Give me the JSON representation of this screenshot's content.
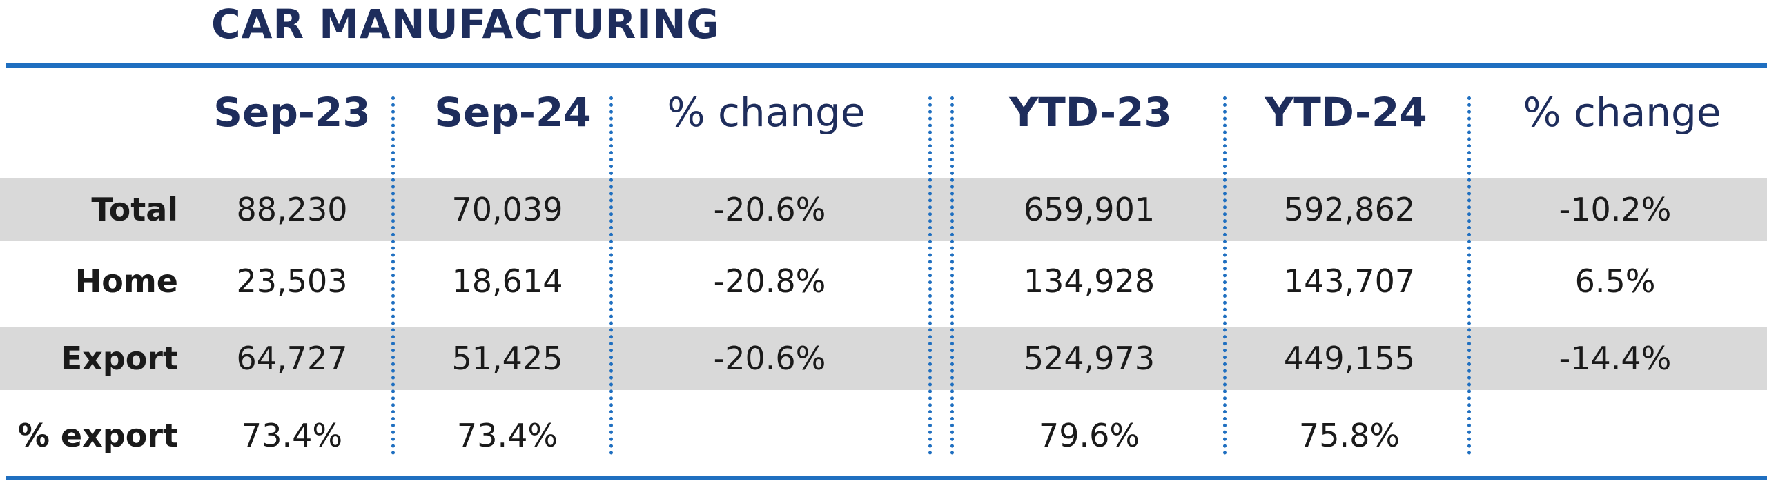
{
  "chart_data": {
    "type": "table",
    "title": "CAR MANUFACTURING",
    "columns": [
      "Sep-23",
      "Sep-24",
      "% change",
      "YTD-23",
      "YTD-24",
      "% change"
    ],
    "rows": [
      {
        "label": "Total",
        "values": [
          "88,230",
          "70,039",
          "-20.6%",
          "659,901",
          "592,862",
          "-10.2%"
        ]
      },
      {
        "label": "Home",
        "values": [
          "23,503",
          "18,614",
          "-20.8%",
          "134,928",
          "143,707",
          "6.5%"
        ]
      },
      {
        "label": "Export",
        "values": [
          "64,727",
          "51,425",
          "-20.6%",
          "524,973",
          "449,155",
          "-14.4%"
        ]
      },
      {
        "label": "% export",
        "values": [
          "73.4%",
          "73.4%",
          "",
          "79.6%",
          "75.8%",
          ""
        ]
      }
    ]
  },
  "colors": {
    "title": "#1e2d5c",
    "rule": "#1f6fc0",
    "band": "#d9d9d9",
    "text": "#1a1a1a"
  }
}
